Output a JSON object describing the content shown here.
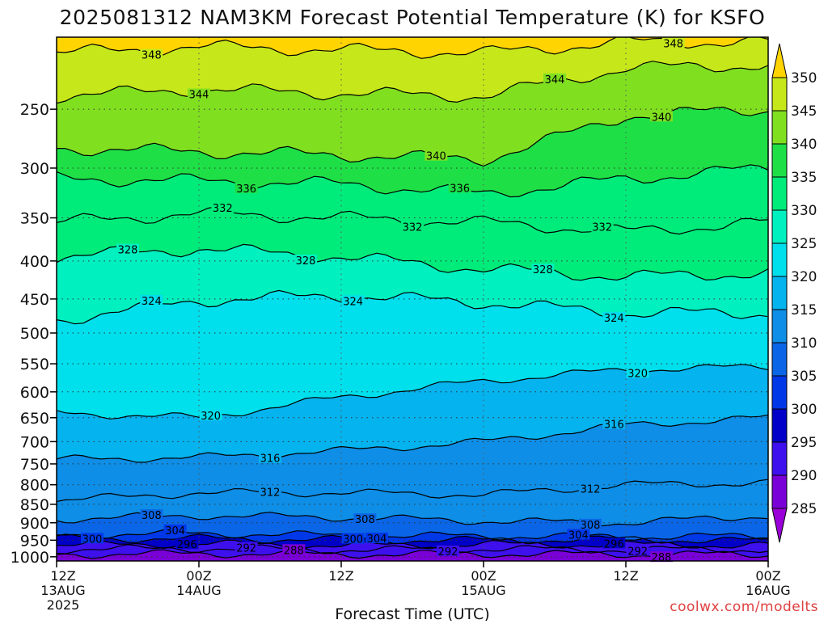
{
  "chart_data": {
    "type": "heatmap",
    "title": "2025081312 NAM3KM Forecast Potential Temperature (K) for KSFO",
    "xlabel": "Forecast Time (UTC)",
    "ylabel": "",
    "x_ticks": [
      {
        "hours": 0,
        "lines": [
          "12Z",
          "13AUG",
          "2025"
        ]
      },
      {
        "hours": 12,
        "lines": [
          "00Z",
          "14AUG"
        ]
      },
      {
        "hours": 24,
        "lines": [
          "12Z"
        ]
      },
      {
        "hours": 36,
        "lines": [
          "00Z",
          "15AUG"
        ]
      },
      {
        "hours": 48,
        "lines": [
          "12Z"
        ]
      },
      {
        "hours": 60,
        "lines": [
          "00Z",
          "16AUG"
        ]
      }
    ],
    "xlim_hours": [
      0,
      60
    ],
    "y_ticks": [
      250,
      300,
      350,
      400,
      450,
      500,
      550,
      600,
      650,
      700,
      750,
      800,
      850,
      900,
      950,
      1000
    ],
    "ylim_hpa": [
      1013,
      200
    ],
    "y_scale": "log-pressure",
    "colorbar": {
      "levels": [
        285,
        290,
        295,
        300,
        305,
        310,
        315,
        320,
        325,
        330,
        335,
        340,
        345,
        350
      ],
      "colors": [
        "#7a00d8",
        "#3e10ee",
        "#0000c8",
        "#0038e8",
        "#0a66e6",
        "#0e8ee6",
        "#05b3ee",
        "#00dfec",
        "#00f0c0",
        "#00ec7a",
        "#1ee046",
        "#80e020",
        "#c6e81a",
        "#fff000"
      ],
      "under_color": "#9a00d8",
      "over_color": "#ffd400"
    },
    "contour_levels": [
      288,
      292,
      296,
      300,
      304,
      308,
      312,
      316,
      320,
      324,
      328,
      332,
      336,
      340,
      344,
      348
    ],
    "ground_color": "#a0522d",
    "contours": [
      {
        "value": 288,
        "profile": [
          [
            0,
            993
          ],
          [
            12,
            990
          ],
          [
            24,
            992
          ],
          [
            36,
            991
          ],
          [
            48,
            992
          ],
          [
            60,
            993
          ]
        ]
      },
      {
        "value": 292,
        "profile": [
          [
            0,
            978
          ],
          [
            12,
            974
          ],
          [
            24,
            979
          ],
          [
            36,
            976
          ],
          [
            48,
            978
          ],
          [
            60,
            977
          ]
        ]
      },
      {
        "value": 296,
        "profile": [
          [
            0,
            965
          ],
          [
            12,
            960
          ],
          [
            24,
            966
          ],
          [
            36,
            962
          ],
          [
            48,
            963
          ],
          [
            60,
            965
          ]
        ]
      },
      {
        "value": 300,
        "profile": [
          [
            0,
            945
          ],
          [
            12,
            945
          ],
          [
            24,
            948
          ],
          [
            36,
            950
          ],
          [
            48,
            947
          ],
          [
            60,
            952
          ]
        ]
      },
      {
        "value": 304,
        "profile": [
          [
            0,
            935
          ],
          [
            12,
            930
          ],
          [
            24,
            936
          ],
          [
            36,
            938
          ],
          [
            48,
            940
          ],
          [
            60,
            938
          ]
        ]
      },
      {
        "value": 308,
        "profile": [
          [
            0,
            890
          ],
          [
            12,
            880
          ],
          [
            24,
            885
          ],
          [
            36,
            895
          ],
          [
            48,
            900
          ],
          [
            60,
            880
          ]
        ]
      },
      {
        "value": 312,
        "profile": [
          [
            0,
            840
          ],
          [
            12,
            820
          ],
          [
            24,
            820
          ],
          [
            36,
            825
          ],
          [
            48,
            800
          ],
          [
            60,
            795
          ]
        ]
      },
      {
        "value": 316,
        "profile": [
          [
            0,
            740
          ],
          [
            12,
            735
          ],
          [
            24,
            720
          ],
          [
            36,
            700
          ],
          [
            48,
            665
          ],
          [
            60,
            650
          ]
        ]
      },
      {
        "value": 320,
        "profile": [
          [
            0,
            640
          ],
          [
            12,
            650
          ],
          [
            24,
            610
          ],
          [
            36,
            580
          ],
          [
            48,
            560
          ],
          [
            60,
            555
          ]
        ]
      },
      {
        "value": 324,
        "profile": [
          [
            0,
            480
          ],
          [
            12,
            452
          ],
          [
            24,
            445
          ],
          [
            36,
            455
          ],
          [
            48,
            470
          ],
          [
            60,
            470
          ]
        ]
      },
      {
        "value": 328,
        "profile": [
          [
            0,
            395
          ],
          [
            12,
            385
          ],
          [
            24,
            395
          ],
          [
            36,
            410
          ],
          [
            48,
            420
          ],
          [
            60,
            415
          ]
        ]
      },
      {
        "value": 332,
        "profile": [
          [
            0,
            355
          ],
          [
            12,
            345
          ],
          [
            24,
            350
          ],
          [
            36,
            355
          ],
          [
            48,
            365
          ],
          [
            60,
            355
          ]
        ]
      },
      {
        "value": 336,
        "profile": [
          [
            0,
            310
          ],
          [
            12,
            312
          ],
          [
            24,
            315
          ],
          [
            36,
            325
          ],
          [
            48,
            310
          ],
          [
            60,
            300
          ]
        ]
      },
      {
        "value": 340,
        "profile": [
          [
            0,
            282
          ],
          [
            12,
            285
          ],
          [
            24,
            288
          ],
          [
            36,
            292
          ],
          [
            48,
            255
          ],
          [
            60,
            250
          ]
        ]
      },
      {
        "value": 344,
        "profile": [
          [
            0,
            240
          ],
          [
            12,
            235
          ],
          [
            24,
            238
          ],
          [
            36,
            240
          ],
          [
            48,
            220
          ],
          [
            60,
            218
          ]
        ]
      },
      {
        "value": 348,
        "profile": [
          [
            0,
            210
          ],
          [
            12,
            206
          ],
          [
            24,
            208
          ],
          [
            36,
            210
          ],
          [
            48,
            203
          ],
          [
            60,
            203
          ]
        ]
      }
    ],
    "contour_labels": [
      {
        "text": "348",
        "hours": 8,
        "value": 348
      },
      {
        "text": "348",
        "hours": 52,
        "value": 348
      },
      {
        "text": "344",
        "hours": 12,
        "value": 344
      },
      {
        "text": "344",
        "hours": 42,
        "value": 344
      },
      {
        "text": "340",
        "hours": 32,
        "value": 340
      },
      {
        "text": "340",
        "hours": 51,
        "value": 340
      },
      {
        "text": "336",
        "hours": 16,
        "value": 336
      },
      {
        "text": "336",
        "hours": 34,
        "value": 336
      },
      {
        "text": "332",
        "hours": 14,
        "value": 332
      },
      {
        "text": "332",
        "hours": 30,
        "value": 332
      },
      {
        "text": "332",
        "hours": 46,
        "value": 332
      },
      {
        "text": "328",
        "hours": 6,
        "value": 328
      },
      {
        "text": "328",
        "hours": 21,
        "value": 328
      },
      {
        "text": "328",
        "hours": 41,
        "value": 328
      },
      {
        "text": "324",
        "hours": 8,
        "value": 324
      },
      {
        "text": "324",
        "hours": 25,
        "value": 324
      },
      {
        "text": "324",
        "hours": 47,
        "value": 324
      },
      {
        "text": "320",
        "hours": 13,
        "value": 320
      },
      {
        "text": "320",
        "hours": 49,
        "value": 320
      },
      {
        "text": "316",
        "hours": 18,
        "value": 316
      },
      {
        "text": "316",
        "hours": 47,
        "value": 316
      },
      {
        "text": "312",
        "hours": 18,
        "value": 312
      },
      {
        "text": "312",
        "hours": 45,
        "value": 312
      },
      {
        "text": "308",
        "hours": 8,
        "value": 308
      },
      {
        "text": "308",
        "hours": 26,
        "value": 308
      },
      {
        "text": "308",
        "hours": 45,
        "value": 308
      },
      {
        "text": "304",
        "hours": 10,
        "value": 304
      },
      {
        "text": "304",
        "hours": 27,
        "value": 304
      },
      {
        "text": "304",
        "hours": 44,
        "value": 304
      },
      {
        "text": "300",
        "hours": 3,
        "value": 300
      },
      {
        "text": "300",
        "hours": 25,
        "value": 300
      },
      {
        "text": "296",
        "hours": 11,
        "value": 296
      },
      {
        "text": "296",
        "hours": 47,
        "value": 296
      },
      {
        "text": "292",
        "hours": 16,
        "value": 292
      },
      {
        "text": "292",
        "hours": 33,
        "value": 292
      },
      {
        "text": "292",
        "hours": 49,
        "value": 292
      },
      {
        "text": "288",
        "hours": 20,
        "value": 288
      },
      {
        "text": "288",
        "hours": 51,
        "value": 288
      }
    ]
  },
  "credit": "coolwx.com/modelts"
}
